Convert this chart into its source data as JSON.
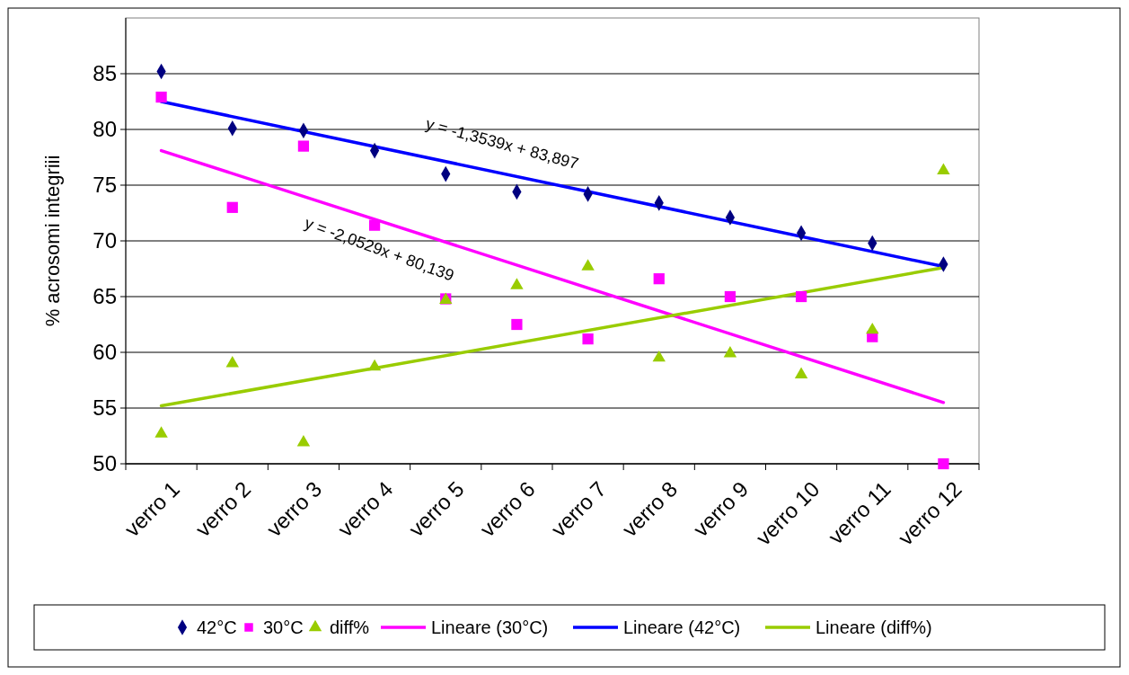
{
  "chart_data": {
    "type": "scatter",
    "ylabel": "% acrosomi integriii",
    "categories": [
      "verro 1",
      "verro 2",
      "verro 3",
      "verro 4",
      "verro 5",
      "verro 6",
      "verro 7",
      "verro 8",
      "verro 9",
      "verro 10",
      "verro 11",
      "verro 12"
    ],
    "series": [
      {
        "name": "42°C",
        "color": "#000080",
        "marker": "diamond",
        "values": [
          85.2,
          80.1,
          79.9,
          78.1,
          76.0,
          74.4,
          74.2,
          73.4,
          72.1,
          70.7,
          69.8,
          67.9
        ]
      },
      {
        "name": "30°C",
        "color": "#ff00ff",
        "marker": "square",
        "values": [
          82.9,
          73.0,
          78.5,
          71.4,
          64.8,
          62.5,
          61.2,
          66.6,
          65.0,
          65.0,
          61.4,
          50.0
        ]
      },
      {
        "name": "diff%",
        "color": "#99cc00",
        "marker": "triangle",
        "values": [
          52.7,
          59.0,
          51.9,
          58.7,
          64.7,
          66.0,
          67.7,
          59.5,
          59.9,
          58.0,
          62.0,
          76.3
        ]
      },
      {
        "name": "Lineare (30°C)",
        "type": "line",
        "color": "#ff00ff",
        "marker": "none",
        "line_style": "solid",
        "x": [
          "verro 1",
          "verro 12"
        ],
        "values": [
          78.1,
          55.5
        ]
      },
      {
        "name": "Lineare (42°C)",
        "type": "line",
        "color": "#0000ff",
        "marker": "none",
        "line_style": "solid",
        "x": [
          "verro 1",
          "verro 12"
        ],
        "values": [
          82.5,
          67.7
        ]
      },
      {
        "name": "Lineare (diff%)",
        "type": "line",
        "color": "#99cc00",
        "marker": "none",
        "line_style": "solid",
        "x": [
          "verro 1",
          "verro 12"
        ],
        "values": [
          55.2,
          67.6
        ]
      }
    ],
    "annotations": [
      "y = -1,3539x + 83,897",
      "y = -2,0529x + 80,139"
    ],
    "ylim": [
      50,
      90
    ],
    "yticks": [
      50,
      55,
      60,
      65,
      70,
      75,
      80,
      85
    ],
    "grid": "y",
    "legend": "bottom"
  }
}
